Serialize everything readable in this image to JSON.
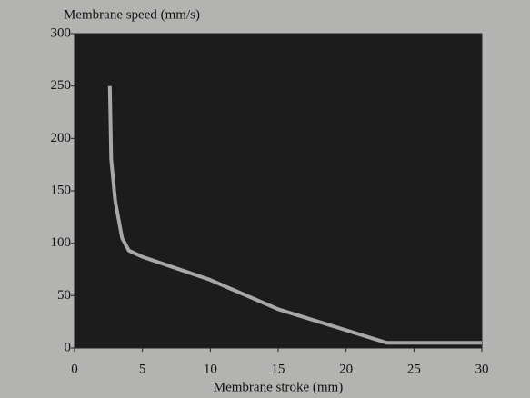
{
  "chart_data": {
    "type": "line",
    "y_label": "Membrane speed (mm/s)",
    "x_label": "Membrane stroke (mm)",
    "x": [
      2.6,
      2.7,
      3.0,
      3.5,
      4,
      5,
      10,
      15,
      20,
      23,
      30
    ],
    "values": [
      250,
      180,
      140,
      105,
      93,
      87,
      65,
      37,
      17,
      5,
      5
    ],
    "color": "#a8a8a8",
    "plot_background": "#1c1c1c",
    "xlim": [
      0,
      30
    ],
    "xticks": [
      0,
      5,
      10,
      15,
      20,
      25,
      30
    ],
    "ylim": [
      0,
      300
    ],
    "yticks": [
      0,
      50,
      100,
      150,
      200,
      250,
      300
    ]
  }
}
